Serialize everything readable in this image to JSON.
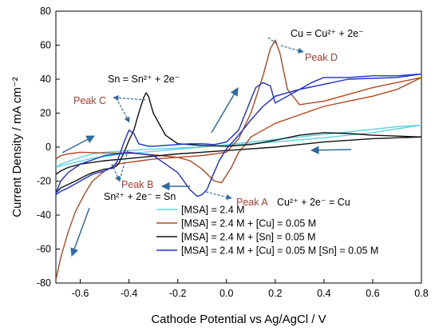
{
  "chart_data": {
    "type": "line",
    "xlabel": "Cathode Potential vs Ag/AgCl / V",
    "ylabel": "Current Density / mA cm⁻²",
    "xlim": [
      -0.7,
      0.8
    ],
    "ylim": [
      -80,
      80
    ],
    "xticks": [
      -0.6,
      -0.4,
      -0.2,
      0.0,
      0.2,
      0.4,
      0.6,
      0.8
    ],
    "xtick_labels": [
      "-0.6",
      "-0.4",
      "-0.2",
      "0.0",
      "0.2",
      "0.4",
      "0.6",
      "0.8"
    ],
    "yticks": [
      -80,
      -60,
      -40,
      -20,
      0,
      20,
      40,
      60,
      80
    ],
    "ytick_labels": [
      "-80",
      "-60",
      "-40",
      "-20",
      "0",
      "20",
      "40",
      "60",
      "80"
    ],
    "grid": false,
    "legend_position": "bottom-right",
    "series": [
      {
        "name": "[MSA] = 2.4 M",
        "color": "#5fd3e0",
        "x": [
          -0.7,
          -0.68,
          -0.62,
          -0.55,
          -0.5,
          -0.45,
          -0.35,
          -0.2,
          0.0,
          0.2,
          0.4,
          0.6,
          0.8,
          0.7,
          0.5,
          0.3,
          0.1,
          -0.1,
          -0.3,
          -0.45,
          -0.55,
          -0.62,
          -0.68,
          -0.7
        ],
        "y": [
          -12,
          -10,
          -7,
          -4,
          -3,
          -2.5,
          -1.5,
          -0.5,
          1,
          3,
          5.5,
          8.5,
          13,
          12,
          9,
          6,
          3,
          0,
          -2.5,
          -4.5,
          -6.5,
          -9,
          -11,
          -12
        ]
      },
      {
        "name": "[MSA] = 2.4 M + [Cu] = 0.05 M",
        "color": "#b5471f",
        "x": [
          -0.7,
          -0.68,
          -0.65,
          -0.62,
          -0.58,
          -0.55,
          -0.5,
          -0.45,
          -0.4,
          -0.35,
          -0.3,
          -0.2,
          -0.1,
          0.0,
          0.05,
          0.1,
          0.15,
          0.18,
          0.2,
          0.22,
          0.25,
          0.3,
          0.4,
          0.5,
          0.6,
          0.7,
          0.8,
          0.7,
          0.6,
          0.5,
          0.4,
          0.3,
          0.2,
          0.15,
          0.1,
          0.08,
          0.05,
          0.02,
          -0.02,
          -0.05,
          -0.1,
          -0.15,
          -0.2,
          -0.3,
          -0.4,
          -0.5,
          -0.55,
          -0.6,
          -0.65,
          -0.68,
          -0.7
        ],
        "y": [
          -78,
          -65,
          -50,
          -38,
          -27,
          -20,
          -14,
          -10,
          -9,
          -8,
          -7,
          -6,
          -5,
          -3,
          5,
          20,
          42,
          58,
          63,
          55,
          34,
          25,
          27,
          31,
          35,
          38,
          41,
          34,
          30,
          27,
          24,
          19,
          14,
          10,
          6,
          2,
          -3,
          -12,
          -21,
          -20,
          -13,
          -8,
          -6,
          -4.5,
          -3.5,
          -3.5,
          -3.2,
          -3,
          -4,
          -5,
          -7
        ]
      },
      {
        "name": "[MSA] = 2.4 M + [Sn] = 0.05 M",
        "color": "#111111",
        "x": [
          -0.7,
          -0.68,
          -0.65,
          -0.62,
          -0.58,
          -0.55,
          -0.5,
          -0.47,
          -0.45,
          -0.44,
          -0.42,
          -0.4,
          -0.38,
          -0.36,
          -0.34,
          -0.33,
          -0.32,
          -0.3,
          -0.25,
          -0.2,
          -0.1,
          0.0,
          0.1,
          0.2,
          0.3,
          0.4,
          0.5,
          0.6,
          0.7,
          0.8,
          0.6,
          0.4,
          0.2,
          0.0,
          -0.2,
          -0.35,
          -0.5,
          -0.6,
          -0.65,
          -0.68,
          -0.7
        ],
        "y": [
          -27,
          -24,
          -22,
          -20,
          -17,
          -15,
          -13,
          -12.5,
          -11,
          -9,
          -3,
          4,
          10,
          20,
          29,
          32,
          30,
          20,
          7,
          2,
          1,
          0.5,
          1.5,
          4,
          7,
          8.5,
          8,
          7,
          6.5,
          6,
          5,
          3,
          0,
          -2,
          -4,
          -6,
          -8,
          -10,
          -12,
          -14,
          -16
        ]
      },
      {
        "name": "[MSA] = 2.4 M + [Cu] = 0.05 M [Sn] = 0.05 M",
        "color": "#1b2fd1",
        "x": [
          -0.7,
          -0.68,
          -0.65,
          -0.6,
          -0.55,
          -0.5,
          -0.47,
          -0.45,
          -0.44,
          -0.42,
          -0.4,
          -0.38,
          -0.36,
          -0.32,
          -0.3,
          -0.2,
          -0.15,
          -0.1,
          -0.05,
          0.0,
          0.05,
          0.1,
          0.12,
          0.15,
          0.18,
          0.2,
          0.25,
          0.3,
          0.35,
          0.4,
          0.5,
          0.6,
          0.7,
          0.8,
          0.7,
          0.5,
          0.4,
          0.3,
          0.2,
          0.15,
          0.1,
          0.05,
          0.0,
          -0.03,
          -0.06,
          -0.08,
          -0.1,
          -0.12,
          -0.15,
          -0.2,
          -0.3,
          -0.4,
          -0.5,
          -0.6,
          -0.65,
          -0.68,
          -0.7
        ],
        "y": [
          -28,
          -26,
          -24,
          -20,
          -16,
          -14,
          -12,
          -9,
          -5,
          3,
          10,
          8,
          2,
          0.5,
          0.5,
          1.5,
          2,
          2,
          1.5,
          3,
          10,
          28,
          35,
          38,
          36,
          26,
          30,
          34,
          38,
          41,
          41,
          42,
          42,
          43,
          41,
          40,
          37,
          34,
          30,
          24,
          16,
          7,
          -1,
          -8,
          -18,
          -25,
          -28,
          -29,
          -25,
          -15,
          -5,
          -3,
          -5,
          -10,
          -15,
          -20,
          -27
        ]
      }
    ],
    "annotations": {
      "peak_a": "Peak A",
      "peak_b": "Peak B",
      "peak_c": "Peak C",
      "peak_d": "Peak D",
      "eq_cu_ox": "Cu = Cu²⁺ + 2e⁻",
      "eq_sn_ox": "Sn = Sn²⁺ + 2e⁻",
      "eq_sn_red": "Sn²⁺ + 2e⁻ = Sn",
      "eq_cu_red": "Cu²⁺ + 2e⁻ = Cu"
    }
  }
}
